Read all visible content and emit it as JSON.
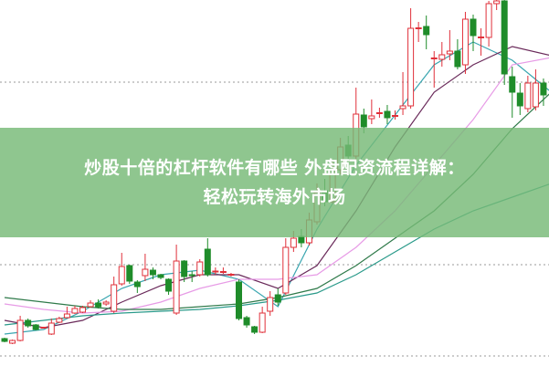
{
  "banner": {
    "line1": "炒股十倍的杠杆软件有哪些 外盘配资流程详解：",
    "line2": "轻松玩转海外市场"
  },
  "chart_data": {
    "type": "candlestick",
    "grid": "dotted horizontal",
    "ylim": [
      0,
      401
    ],
    "colors": {
      "up": "#e0303a",
      "down": "#1f8c2a",
      "grid": "#999999"
    },
    "candles_ohlc": [
      [
        30,
        31,
        26,
        27
      ],
      [
        25,
        29,
        24,
        28
      ],
      [
        28,
        55,
        27,
        50
      ],
      [
        50,
        52,
        42,
        44
      ],
      [
        45,
        46,
        39,
        40
      ],
      [
        42,
        43,
        41,
        42.5
      ],
      [
        35,
        52,
        34,
        47
      ],
      [
        48,
        54,
        47,
        52
      ],
      [
        53,
        65,
        52,
        57
      ],
      [
        58,
        66,
        57,
        63
      ],
      [
        59,
        66,
        58,
        64
      ],
      [
        65,
        72,
        64,
        69
      ],
      [
        69,
        73,
        63,
        65
      ],
      [
        68,
        72,
        66,
        70
      ],
      [
        60,
        98,
        58,
        89
      ],
      [
        90,
        124,
        88,
        109
      ],
      [
        110,
        111,
        90,
        93
      ],
      [
        92,
        94,
        80,
        87
      ],
      [
        99,
        123,
        93,
        106
      ],
      [
        105,
        108,
        95,
        100
      ],
      [
        100,
        101,
        95,
        97
      ],
      [
        95,
        96,
        78,
        82
      ],
      [
        58,
        133,
        56,
        115
      ],
      [
        115,
        116,
        92,
        98
      ],
      [
        100,
        104,
        92,
        99
      ],
      [
        100,
        117,
        98,
        114
      ],
      [
        128,
        140,
        98,
        100
      ],
      [
        103,
        108,
        100,
        104
      ],
      [
        103,
        108,
        101,
        103.5
      ],
      [
        100,
        102,
        98,
        100.5
      ],
      [
        92,
        95,
        50,
        52
      ],
      [
        53,
        55,
        42,
        45
      ],
      [
        43,
        44,
        35,
        37
      ],
      [
        37,
        65,
        36,
        58
      ],
      [
        60,
        82,
        55,
        75
      ],
      [
        78,
        85,
        66,
        70
      ],
      [
        80,
        140,
        78,
        130
      ],
      [
        130,
        148,
        125,
        140
      ],
      [
        142,
        150,
        130,
        135
      ],
      [
        135,
        168,
        132,
        160
      ],
      [
        158,
        200,
        155,
        190
      ],
      [
        192,
        205,
        175,
        180
      ],
      [
        180,
        225,
        178,
        215
      ],
      [
        215,
        250,
        210,
        240
      ],
      [
        242,
        252,
        225,
        230
      ],
      [
        230,
        305,
        225,
        276
      ],
      [
        275,
        282,
        255,
        262
      ],
      [
        271,
        292,
        265,
        274
      ],
      [
        277,
        283,
        272,
        277.5
      ],
      [
        279,
        286,
        265,
        272
      ],
      [
        274,
        280,
        270,
        274.5
      ],
      [
        282,
        322,
        275,
        285
      ],
      [
        285,
        392,
        282,
        370
      ],
      [
        370,
        377,
        355,
        370.5
      ],
      [
        372,
        384,
        347,
        363
      ],
      [
        337,
        345,
        305,
        337.5
      ],
      [
        336,
        355,
        328,
        341
      ],
      [
        342,
        368,
        335,
        345
      ],
      [
        345,
        358,
        325,
        328
      ],
      [
        330,
        388,
        320,
        380
      ],
      [
        380,
        385,
        345,
        362
      ],
      [
        360,
        370,
        340,
        360.5
      ],
      [
        360,
        400,
        350,
        397
      ],
      [
        397,
        402,
        390,
        400
      ],
      [
        400,
        402,
        308,
        320
      ],
      [
        317,
        328,
        272,
        300
      ],
      [
        299,
        310,
        275,
        285
      ],
      [
        282,
        318,
        278,
        310
      ],
      [
        284,
        325,
        280,
        310
      ],
      [
        310,
        315,
        285,
        297
      ]
    ],
    "moving_averages": [
      {
        "color": "#3aa6b0",
        "every": 5,
        "values": [
          35,
          40,
          60,
          85,
          100,
          105,
          95,
          65,
          150,
          220,
          275,
          330,
          355,
          335,
          300
        ]
      },
      {
        "color": "#6a2a5a",
        "every": 5,
        "values": [
          50,
          42,
          50,
          70,
          88,
          100,
          100,
          85,
          110,
          170,
          240,
          300,
          330,
          350,
          340
        ]
      },
      {
        "color": "#e79be6",
        "every": 5,
        "values": [
          68,
          62,
          58,
          60,
          70,
          85,
          95,
          95,
          100,
          130,
          170,
          220,
          270,
          330,
          338
        ]
      },
      {
        "color": "#2f7a4a",
        "every": 5,
        "values": [
          75,
          70,
          65,
          62,
          62,
          65,
          68,
          75,
          85,
          110,
          140,
          170,
          210,
          260,
          300
        ]
      },
      {
        "color": "#2a9a8a",
        "every": 5,
        "values": [
          45,
          50,
          55,
          58,
          60,
          62,
          66,
          72,
          80,
          100,
          125,
          150,
          170,
          185,
          200
        ]
      }
    ],
    "gridlines": [
      311,
      111,
      11
    ]
  }
}
